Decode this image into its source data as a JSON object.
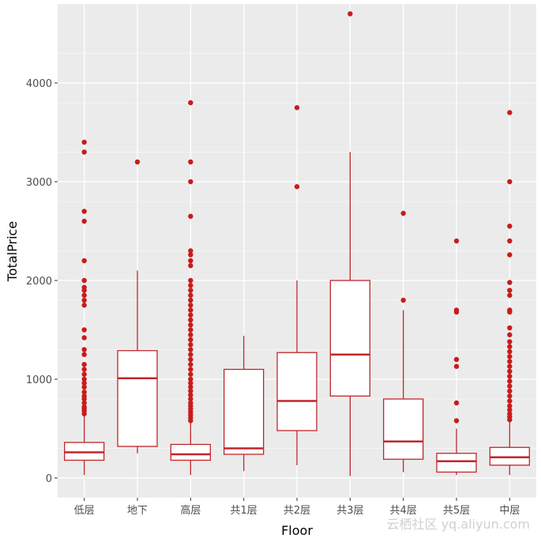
{
  "chart_data": {
    "type": "boxplot",
    "title": "",
    "xlabel": "Floor",
    "ylabel": "TotalPrice",
    "ylim": [
      -200,
      4800
    ],
    "yticks": [
      0,
      1000,
      2000,
      3000,
      4000
    ],
    "grid": true,
    "colors": {
      "panel": "#ebebeb",
      "grid": "#ffffff",
      "box_stroke": "#c0262b",
      "box_fill": "#ffffff",
      "outlier": "#c81c1c",
      "axis_text": "#4d4d4d",
      "label_text": "#000000"
    },
    "categories": [
      "低层",
      "地下",
      "高层",
      "共1层",
      "共2层",
      "共3层",
      "共4层",
      "共5层",
      "中层"
    ],
    "boxes": [
      {
        "category": "低层",
        "whisker_low": 30,
        "q1": 180,
        "median": 260,
        "q3": 360,
        "whisker_high": 630,
        "outliers": [
          650,
          680,
          700,
          720,
          760,
          800,
          830,
          870,
          920,
          960,
          1000,
          1050,
          1100,
          1150,
          1250,
          1300,
          1420,
          1500,
          1750,
          1800,
          1850,
          1900,
          1930,
          2000,
          2200,
          2600,
          2700,
          3300,
          3400
        ]
      },
      {
        "category": "地下",
        "whisker_low": 250,
        "q1": 320,
        "median": 1010,
        "q3": 1290,
        "whisker_high": 2100,
        "outliers": [
          3200
        ]
      },
      {
        "category": "高层",
        "whisker_low": 30,
        "q1": 180,
        "median": 240,
        "q3": 340,
        "whisker_high": 570,
        "outliers": [
          580,
          610,
          640,
          670,
          700,
          730,
          760,
          800,
          840,
          880,
          920,
          960,
          1000,
          1050,
          1100,
          1150,
          1200,
          1250,
          1300,
          1350,
          1400,
          1450,
          1500,
          1550,
          1600,
          1650,
          1700,
          1750,
          1800,
          1850,
          1900,
          1950,
          2000,
          2150,
          2200,
          2260,
          2300,
          2650,
          3000,
          3200,
          3800
        ]
      },
      {
        "category": "共1层",
        "whisker_low": 70,
        "q1": 240,
        "median": 300,
        "q3": 1100,
        "whisker_high": 1440,
        "outliers": []
      },
      {
        "category": "共2层",
        "whisker_low": 130,
        "q1": 480,
        "median": 780,
        "q3": 1270,
        "whisker_high": 2000,
        "outliers": [
          2950,
          3750
        ]
      },
      {
        "category": "共3层",
        "whisker_low": 20,
        "q1": 830,
        "median": 1250,
        "q3": 2000,
        "whisker_high": 3300,
        "outliers": [
          4700
        ]
      },
      {
        "category": "共4层",
        "whisker_low": 60,
        "q1": 190,
        "median": 370,
        "q3": 800,
        "whisker_high": 1700,
        "outliers": [
          1800,
          2680
        ]
      },
      {
        "category": "共5层",
        "whisker_low": 30,
        "q1": 60,
        "median": 170,
        "q3": 250,
        "whisker_high": 500,
        "outliers": [
          580,
          760,
          1130,
          1200,
          1680,
          1700,
          2400
        ]
      },
      {
        "category": "中层",
        "whisker_low": 30,
        "q1": 130,
        "median": 210,
        "q3": 310,
        "whisker_high": 580,
        "outliers": [
          590,
          620,
          650,
          690,
          730,
          780,
          830,
          880,
          930,
          980,
          1030,
          1080,
          1130,
          1180,
          1230,
          1280,
          1330,
          1380,
          1450,
          1520,
          1680,
          1700,
          1850,
          1900,
          1980,
          2260,
          2400,
          2550,
          3000,
          3700
        ]
      }
    ]
  },
  "watermark": "云栖社区 yq.aliyun.com"
}
